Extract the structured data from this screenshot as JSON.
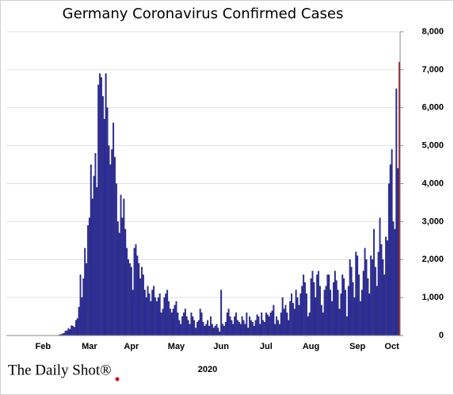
{
  "chart_data": {
    "type": "bar",
    "title": "Germany Coronavirus Confirmed Cases",
    "xlabel": "2020",
    "logo": "The Daily Shot®",
    "color": "#2c2ca6",
    "last_color": "#8b1414",
    "grid": true,
    "ylim": [
      0,
      8000
    ],
    "yticks": [
      0,
      {
        "value": 1000,
        "label": "1,000"
      },
      {
        "value": 2000,
        "label": "2,000"
      },
      {
        "value": 3000,
        "label": "3,000"
      },
      {
        "value": 4000,
        "label": "4,000"
      },
      {
        "value": 5000,
        "label": "5,000"
      },
      {
        "value": 6000,
        "label": "6,000"
      },
      {
        "value": 7000,
        "label": "7,000"
      },
      {
        "value": 8000,
        "label": "8,000"
      }
    ],
    "categories": [
      null,
      null,
      null,
      null,
      null,
      null,
      null,
      null,
      null,
      null,
      null,
      null,
      null,
      null,
      null,
      null,
      null,
      null,
      null,
      null,
      null,
      null,
      null,
      null,
      "Feb",
      null,
      null,
      null,
      null,
      null,
      null,
      null,
      null,
      null,
      null,
      null,
      null,
      null,
      null,
      null,
      null,
      null,
      null,
      null,
      null,
      null,
      null,
      null,
      null,
      null,
      null,
      null,
      null,
      null,
      null,
      "Mar",
      null,
      null,
      null,
      null,
      null,
      null,
      null,
      null,
      null,
      null,
      null,
      null,
      null,
      null,
      null,
      null,
      null,
      null,
      null,
      null,
      null,
      null,
      null,
      null,
      null,
      null,
      null,
      "Apr",
      null,
      null,
      null,
      null,
      null,
      null,
      null,
      null,
      null,
      null,
      null,
      null,
      null,
      null,
      null,
      null,
      null,
      null,
      null,
      null,
      null,
      null,
      null,
      null,
      null,
      null,
      null,
      null,
      null,
      "May",
      null,
      null,
      null,
      null,
      null,
      null,
      null,
      null,
      null,
      null,
      null,
      null,
      null,
      null,
      null,
      null,
      null,
      null,
      null,
      null,
      null,
      null,
      null,
      null,
      null,
      null,
      null,
      null,
      null,
      "Jun",
      null,
      null,
      null,
      null,
      null,
      null,
      null,
      null,
      null,
      null,
      null,
      null,
      null,
      null,
      null,
      null,
      null,
      null,
      null,
      null,
      null,
      null,
      null,
      null,
      null,
      null,
      null,
      null,
      null,
      "Jul",
      null,
      null,
      null,
      null,
      null,
      null,
      null,
      null,
      null,
      null,
      null,
      null,
      null,
      null,
      null,
      null,
      null,
      null,
      null,
      null,
      null,
      null,
      null,
      null,
      null,
      null,
      null,
      null,
      null,
      "Aug",
      null,
      null,
      null,
      null,
      null,
      null,
      null,
      null,
      null,
      null,
      null,
      null,
      null,
      null,
      null,
      null,
      null,
      null,
      null,
      null,
      null,
      null,
      null,
      null,
      null,
      null,
      null,
      null,
      null,
      null,
      "Sep",
      null,
      null,
      null,
      null,
      null,
      null,
      null,
      null,
      null,
      null,
      null,
      null,
      null,
      null,
      null,
      null,
      null,
      null,
      null,
      null,
      null,
      null,
      "Oct",
      null,
      null,
      null,
      null,
      null
    ],
    "values": [
      0,
      0,
      0,
      0,
      0,
      1,
      3,
      0,
      1,
      0,
      2,
      2,
      0,
      0,
      2,
      0,
      0,
      0,
      0,
      1,
      2,
      0,
      0,
      2,
      0,
      0,
      0,
      0,
      0,
      0,
      0,
      0,
      0,
      0,
      0,
      20,
      30,
      50,
      60,
      120,
      130,
      190,
      160,
      260,
      250,
      220,
      400,
      450,
      750,
      1600,
      1000,
      1500,
      2300,
      1900,
      2900,
      3100,
      4500,
      3600,
      4200,
      4800,
      3900,
      6600,
      6900,
      6800,
      6300,
      5700,
      6900,
      6000,
      5000,
      4500,
      4900,
      5600,
      4700,
      4000,
      3000,
      2700,
      3700,
      3100,
      3600,
      2800,
      2300,
      2000,
      1900,
      1800,
      1200,
      2300,
      2400,
      2100,
      1900,
      1500,
      1800,
      1600,
      1200,
      1000,
      1300,
      1100,
      900,
      1200,
      1300,
      1000,
      900,
      1000,
      1100,
      600,
      700,
      1000,
      1100,
      1200,
      900,
      700,
      600,
      700,
      800,
      900,
      600,
      400,
      300,
      500,
      600,
      700,
      500,
      400,
      300,
      600,
      500,
      400,
      200,
      350,
      400,
      700,
      600,
      350,
      250,
      300,
      400,
      250,
      500,
      300,
      200,
      250,
      300,
      200,
      100,
      1200,
      300,
      250,
      350,
      600,
      700,
      500,
      400,
      300,
      500,
      600,
      400,
      350,
      300,
      500,
      400,
      300,
      600,
      200,
      500,
      400,
      350,
      250,
      400,
      550,
      500,
      300,
      600,
      400,
      350,
      600,
      550,
      500,
      600,
      650,
      800,
      300,
      500,
      400,
      300,
      600,
      1000,
      700,
      800,
      600,
      400,
      900,
      1100,
      850,
      700,
      1200,
      1000,
      800,
      1100,
      1300,
      1600,
      1400,
      1100,
      500,
      600,
      1500,
      1700,
      1400,
      1000,
      1600,
      1700,
      1300,
      800,
      600,
      1200,
      1300,
      1600,
      1600,
      1200,
      900,
      1400,
      1700,
      1450,
      1200,
      700,
      1100,
      1600,
      1500,
      1200,
      500,
      1300,
      2000,
      1800,
      1400,
      1000,
      2200,
      2100,
      1600,
      900,
      1200,
      1700,
      2300,
      2000,
      1500,
      1100,
      2100,
      2000,
      2800,
      1800,
      1300,
      2200,
      3100,
      2400,
      2000,
      1600,
      2600,
      2500,
      4000,
      4500,
      4900,
      3000,
      2800,
      6500,
      4400,
      7200
    ]
  }
}
